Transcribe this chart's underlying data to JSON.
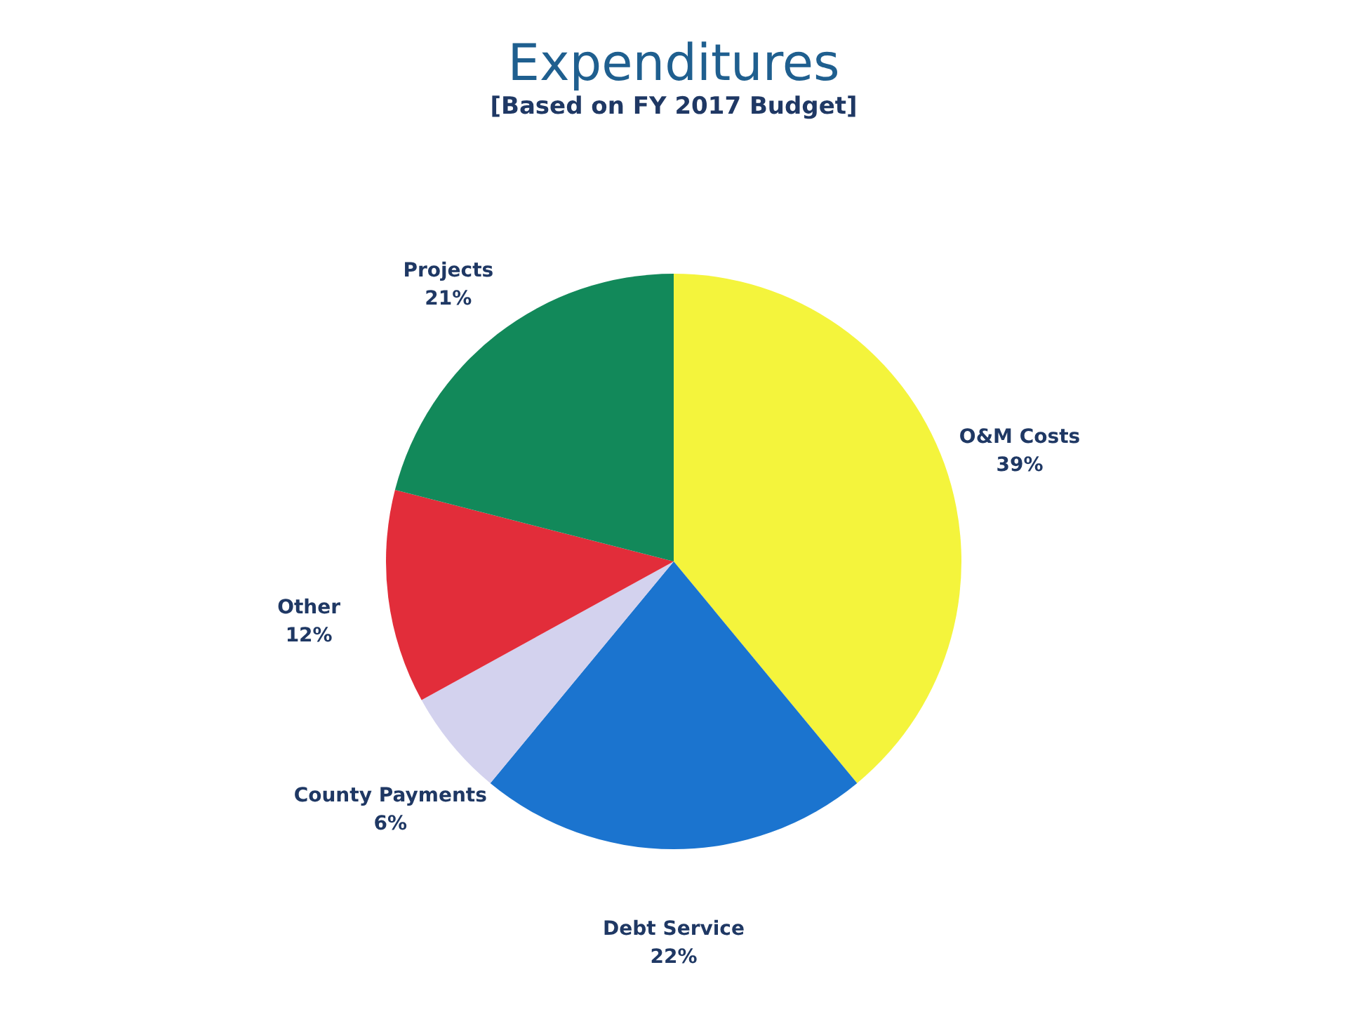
{
  "chart_data": {
    "type": "pie",
    "title": "Expenditures",
    "subtitle": "[Based on FY 2017 Budget]",
    "categories": [
      "O&M Costs",
      "Debt Service",
      "County Payments",
      "Other",
      "Projects"
    ],
    "values": [
      39,
      22,
      6,
      12,
      21
    ],
    "value_labels": [
      "39%",
      "22%",
      "6%",
      "12%",
      "21%"
    ],
    "colors": [
      "#f4f43c",
      "#1b74cf",
      "#d3d2ee",
      "#e22d3a",
      "#12895a"
    ],
    "legend": false
  }
}
